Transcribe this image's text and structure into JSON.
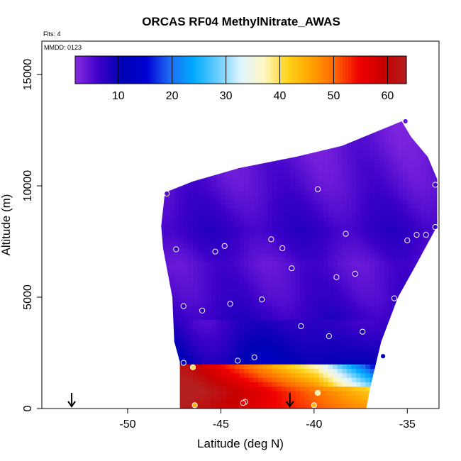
{
  "chart_data": {
    "type": "heatmap",
    "title": "ORCAS RF04 MethylNitrate_AWAS",
    "annotations": {
      "flights": "Flts: 4",
      "date": "MMDD: 0123"
    },
    "xlabel": "Latitude (deg N)",
    "ylabel": "Altitude (m)",
    "xlim": [
      -54.6,
      -33.3
    ],
    "ylim": [
      0,
      16500
    ],
    "x_ticks": [
      -50,
      -45,
      -40,
      -35
    ],
    "x_tick_labels": [
      "-50",
      "-45",
      "-40",
      "-35"
    ],
    "y_ticks": [
      0,
      5000,
      10000,
      15000
    ],
    "y_tick_labels": [
      "0",
      "5000",
      "10000",
      "15000"
    ],
    "colorbar": {
      "min": 2,
      "max": 63.5,
      "ticks": [
        10,
        20,
        30,
        40,
        50,
        60
      ],
      "tick_labels": [
        "10",
        "20",
        "30",
        "40",
        "50",
        "60"
      ],
      "colors": [
        "#8a2be2",
        "#3b00c8",
        "#0000b4",
        "#0000d2",
        "#1e6cf5",
        "#00aaff",
        "#66ccff",
        "#dff4ff",
        "#fff6c0",
        "#ffd21a",
        "#ffa000",
        "#ff6400",
        "#f00000",
        "#c80000",
        "#b41e1e"
      ]
    },
    "domain_outline": [
      [
        -48,
        9700
      ],
      [
        -46.5,
        10200
      ],
      [
        -44,
        10800
      ],
      [
        -41,
        11300
      ],
      [
        -38.5,
        11800
      ],
      [
        -35.3,
        12900
      ],
      [
        -34.8,
        12200
      ],
      [
        -33.9,
        11300
      ],
      [
        -33.4,
        10300
      ],
      [
        -33.4,
        8200
      ],
      [
        -34.5,
        6500
      ],
      [
        -35.5,
        5000
      ],
      [
        -36.4,
        3000
      ],
      [
        -37,
        900
      ],
      [
        -37.2,
        0
      ],
      [
        -47.2,
        0
      ],
      [
        -47.2,
        2100
      ],
      [
        -47.5,
        3000
      ],
      [
        -47.6,
        5000
      ],
      [
        -48.1,
        7200
      ],
      [
        -48.2,
        8200
      ]
    ],
    "field_layers": [
      {
        "alt": 12000,
        "value": 4
      },
      {
        "alt": 10000,
        "value": 5
      },
      {
        "alt": 8000,
        "value": 7
      },
      {
        "alt": 6500,
        "value": 5
      },
      {
        "alt": 5000,
        "value": 6
      },
      {
        "alt": 3500,
        "value": 8
      },
      {
        "alt": 2000,
        "value": 11
      },
      {
        "alt": 1950,
        "value": 44
      },
      {
        "alt": 1500,
        "value": 48
      },
      {
        "alt": 1000,
        "value": 53
      },
      {
        "alt": 500,
        "value": 58
      },
      {
        "alt": 0,
        "value": 45
      }
    ],
    "samples": [
      {
        "lat": -35.1,
        "alt": 12900,
        "value": 4
      },
      {
        "lat": -47.9,
        "alt": 9650,
        "value": 5
      },
      {
        "lat": -39.8,
        "alt": 9850,
        "value": 5
      },
      {
        "lat": -33.5,
        "alt": 10050,
        "value": 6
      },
      {
        "lat": -38.3,
        "alt": 7850,
        "value": 6
      },
      {
        "lat": -34.5,
        "alt": 7800,
        "value": 7
      },
      {
        "lat": -34.0,
        "alt": 7800,
        "value": 7
      },
      {
        "lat": -33.5,
        "alt": 8150,
        "value": 7
      },
      {
        "lat": -35.0,
        "alt": 7550,
        "value": 6
      },
      {
        "lat": -47.4,
        "alt": 7150,
        "value": 7
      },
      {
        "lat": -45.3,
        "alt": 7050,
        "value": 7
      },
      {
        "lat": -44.8,
        "alt": 7300,
        "value": 6
      },
      {
        "lat": -42.3,
        "alt": 7600,
        "value": 6
      },
      {
        "lat": -41.7,
        "alt": 7200,
        "value": 6
      },
      {
        "lat": -41.2,
        "alt": 6300,
        "value": 6
      },
      {
        "lat": -38.8,
        "alt": 5900,
        "value": 6
      },
      {
        "lat": -37.8,
        "alt": 6050,
        "value": 6
      },
      {
        "lat": -35.7,
        "alt": 4950,
        "value": 7
      },
      {
        "lat": -47.0,
        "alt": 4600,
        "value": 7
      },
      {
        "lat": -46.0,
        "alt": 4400,
        "value": 8
      },
      {
        "lat": -44.5,
        "alt": 4700,
        "value": 8
      },
      {
        "lat": -42.8,
        "alt": 4900,
        "value": 8
      },
      {
        "lat": -40.7,
        "alt": 3700,
        "value": 9
      },
      {
        "lat": -39.2,
        "alt": 3250,
        "value": 9
      },
      {
        "lat": -37.4,
        "alt": 3450,
        "value": 10
      },
      {
        "lat": -36.3,
        "alt": 2350,
        "value": 11
      },
      {
        "lat": -47.0,
        "alt": 2050,
        "value": 12
      },
      {
        "lat": -44.1,
        "alt": 2150,
        "value": 12
      },
      {
        "lat": -43.2,
        "alt": 2300,
        "value": 12
      },
      {
        "lat": -46.5,
        "alt": 1850,
        "value": 40
      },
      {
        "lat": -46.4,
        "alt": 150,
        "value": 45
      },
      {
        "lat": -43.7,
        "alt": 300,
        "value": 55
      },
      {
        "lat": -43.8,
        "alt": 250,
        "value": 56
      },
      {
        "lat": -40.0,
        "alt": 150,
        "value": 44
      },
      {
        "lat": -39.8,
        "alt": 700,
        "value": 38
      }
    ],
    "arrow_markers": [
      -53.0,
      -41.3
    ]
  }
}
